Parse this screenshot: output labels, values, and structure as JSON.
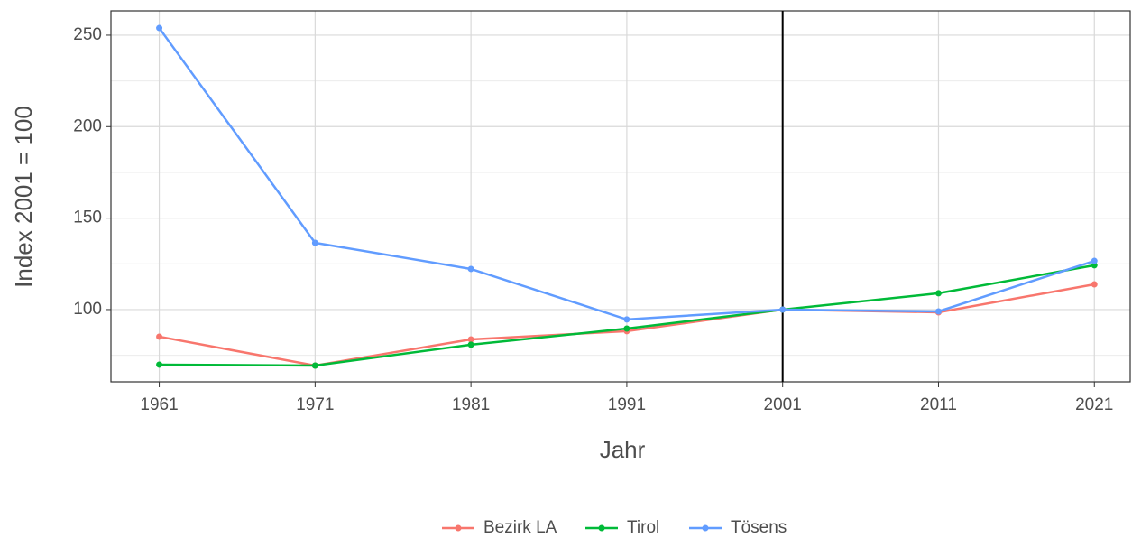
{
  "chart_data": {
    "type": "line",
    "x_label": "Jahr",
    "y_label": "Index 2001 = 100",
    "x": [
      1961,
      1971,
      1981,
      1991,
      2001,
      2011,
      2021
    ],
    "series": [
      {
        "name": "Bezirk LA",
        "color": "#f8766d",
        "values": [
          85.2,
          69.4,
          83.7,
          88.2,
          100,
          98.5,
          113.8
        ]
      },
      {
        "name": "Tirol",
        "color": "#00ba38",
        "values": [
          69.9,
          69.4,
          80.8,
          89.6,
          100,
          108.9,
          124.2
        ]
      },
      {
        "name": "Tösens",
        "color": "#619cff",
        "values": [
          253.9,
          136.5,
          122.2,
          94.6,
          100,
          99,
          126.6
        ]
      }
    ],
    "xlim": [
      1957.9,
      2023.3
    ],
    "xticks": [
      1961,
      1971,
      1981,
      1991,
      2001,
      2011,
      2021
    ],
    "ylim": [
      60.5,
      263.3
    ],
    "yticks": [
      100,
      150,
      200,
      250
    ],
    "y_minor_ticks": [
      75,
      125,
      175,
      225
    ],
    "vline": 2001,
    "grid": true,
    "legend": "bottom"
  }
}
